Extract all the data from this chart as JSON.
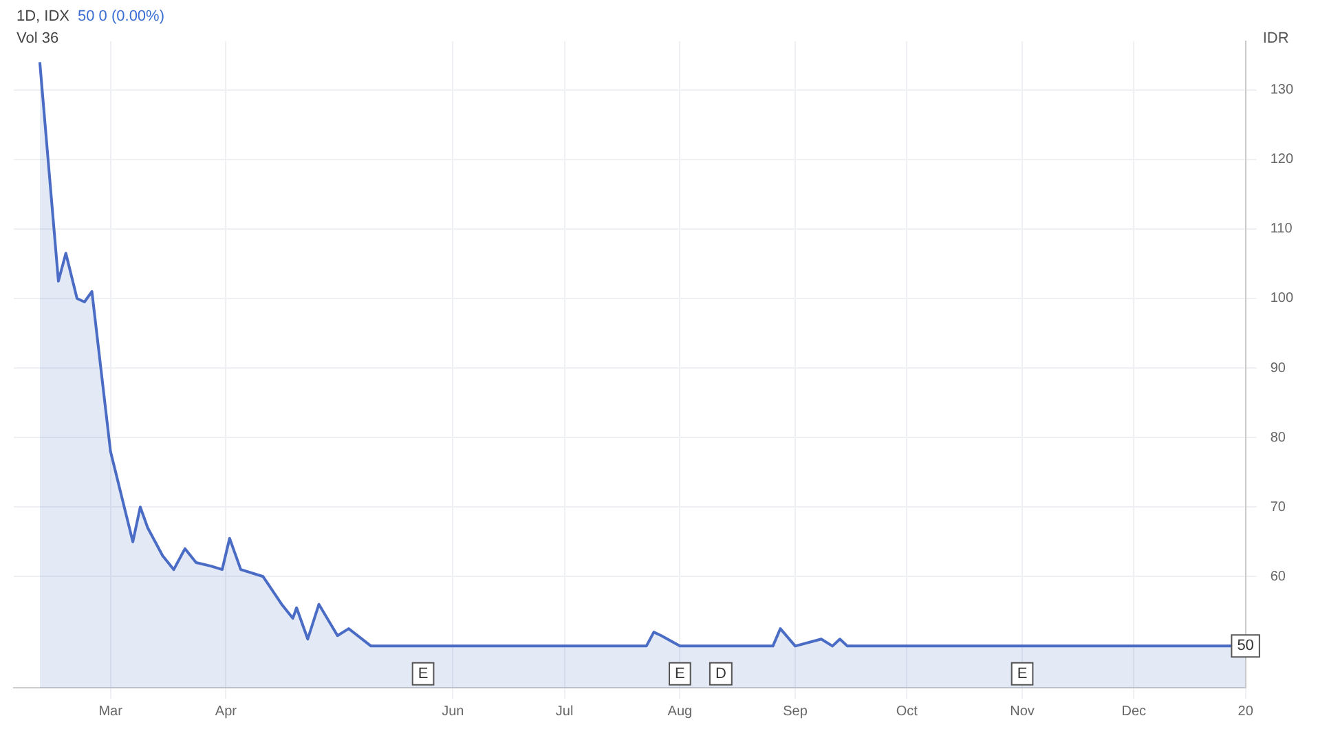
{
  "chart_data": {
    "type": "area",
    "title": "1D, IDX",
    "subtitle": "50 0 (0.00%)",
    "ylabel": "IDR",
    "series": [
      {
        "color": "#4a6cc4",
        "x": [
          "--02-10",
          "--02-15",
          "--02-17",
          "--02-20",
          "--02-22",
          "--02-24",
          "--03-01",
          "--03-07",
          "--03-09",
          "--03-11",
          "--03-15",
          "--03-18",
          "--03-21",
          "--03-24",
          "--03-28",
          "--03-31",
          "--04-02",
          "--04-05",
          "--04-11",
          "--04-16",
          "--04-19",
          "--04-20",
          "--04-23",
          "--04-26",
          "--05-01",
          "--05-04",
          "--05-10",
          "--07-23",
          "--07-25",
          "--07-27",
          "--08-01",
          "--08-26",
          "--08-28",
          "--09-01",
          "--09-08",
          "--09-11",
          "--09-13",
          "--09-15",
          "--12-31"
        ],
        "values": [
          134,
          102.5,
          106.5,
          100,
          99.5,
          101,
          78,
          65,
          70,
          67,
          63,
          61,
          64,
          62,
          61.5,
          61,
          65.5,
          61,
          60,
          56,
          54,
          55.5,
          51,
          56,
          51.5,
          52.5,
          50,
          50,
          52,
          51.5,
          50,
          50,
          52.5,
          50,
          51,
          50,
          51,
          50,
          50
        ]
      }
    ],
    "xlim": [
      "--02-03",
      "--12-31"
    ],
    "xticks": [
      {
        "value": "--03-01",
        "label": "Mar"
      },
      {
        "value": "--04-01",
        "label": "Apr"
      },
      {
        "value": "--06-01",
        "label": "Jun"
      },
      {
        "value": "--07-01",
        "label": "Jul"
      },
      {
        "value": "--08-01",
        "label": "Aug"
      },
      {
        "value": "--09-01",
        "label": "Sep"
      },
      {
        "value": "--10-01",
        "label": "Oct"
      },
      {
        "value": "--11-01",
        "label": "Nov"
      },
      {
        "value": "--12-01",
        "label": "Dec"
      },
      {
        "value": "--12-31",
        "label": "20"
      }
    ],
    "ylim": [
      44,
      137
    ],
    "yticks": [
      60,
      70,
      80,
      90,
      100,
      110,
      120,
      130
    ],
    "grid": true,
    "legend": false,
    "annotations": [
      "Vol 36",
      {
        "text": "E",
        "x": "--05-24",
        "y": 46
      },
      {
        "text": "E",
        "x": "--08-01",
        "y": 46
      },
      {
        "text": "D",
        "x": "--08-12",
        "y": 46
      },
      {
        "text": "E",
        "x": "--11-01",
        "y": 46
      },
      {
        "text": "50",
        "x": "--12-31",
        "y": 50
      }
    ]
  }
}
